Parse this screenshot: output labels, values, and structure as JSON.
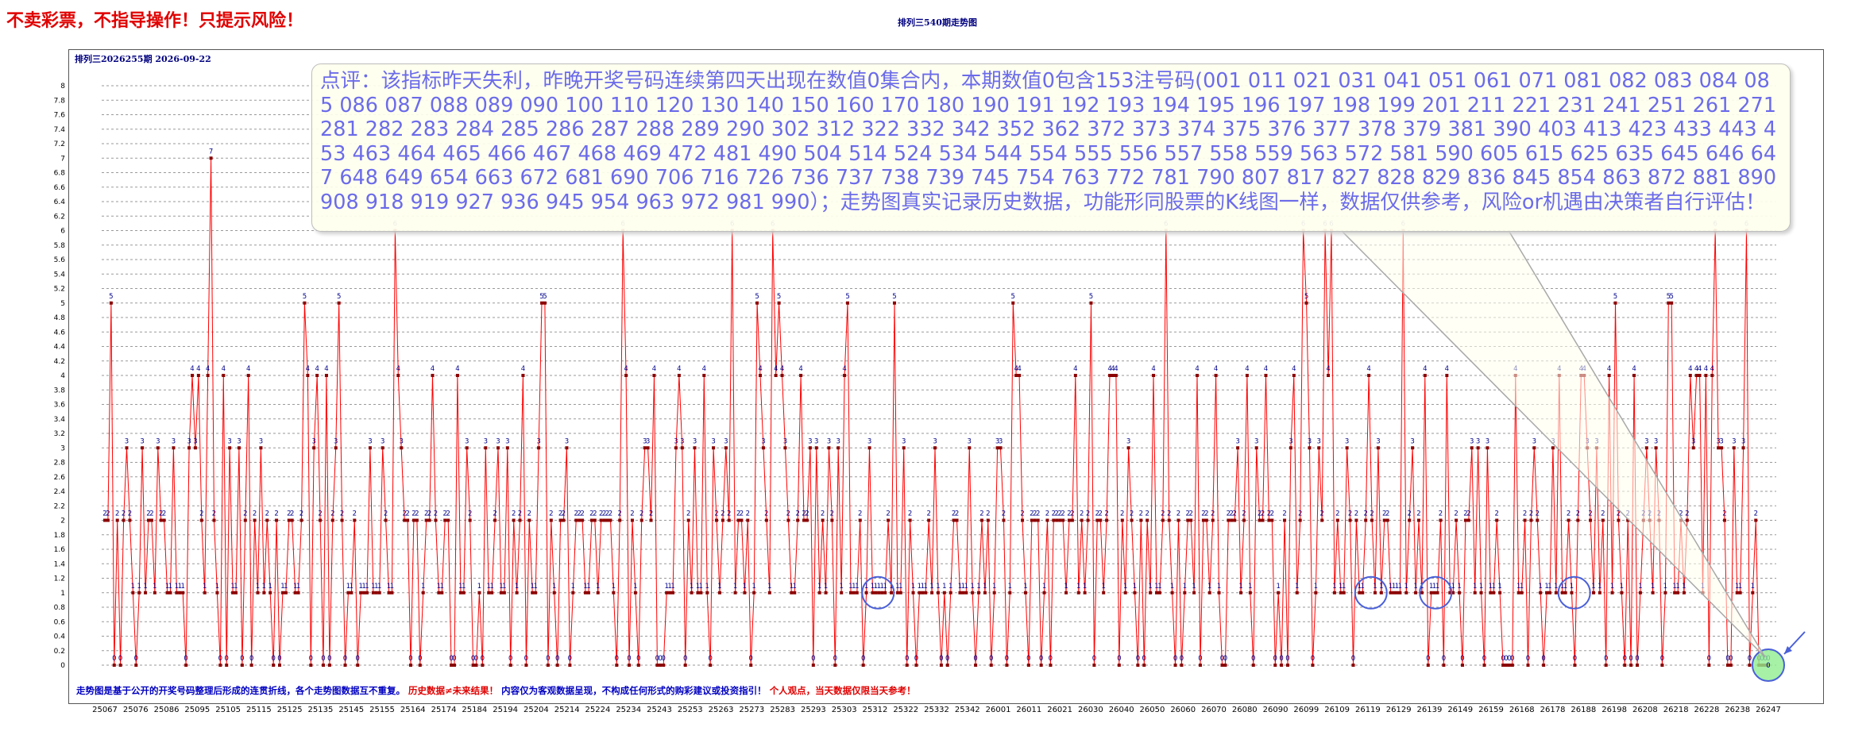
{
  "disclaimer": "不卖彩票，不指导操作！只提示风险！",
  "chart_title": "排列三540期走势图",
  "issue_info": "排列三2026255期  2026-09-22",
  "comment": "点评：该指标昨天失利，昨晚开奖号码连续第四天出现在数值0集合内，本期数值0包含153注号码(001 011 021 031 041 051 061 071 081 082 083 084 085 086 087 088 089 090 100 110 120 130 140 150 160 170 180 190 191 192 193 194 195 196 197 198 199 201 211 221 231 241 251 261 271 281 282 283 284 285 286 287 288 289 290 302 312 322 332 342 352 362 372 373 374 375 376 377 378 379 381 390 403 413 423 433 443 453 463 464 465 466 467 468 469 472 481 490 504 514 524 534 544 554 555 556 557 558 559 563 572 581 590 605 615 625 635 645 646 647 648 649 654 663 672 681 690 706 716 726 736 737 738 739 745 754 763 772 781 790 807 817 827 828 829 836 845 854 863 872 881 890 908 918 919 927 936 945 954 963 972 981 990）；走势图真实记录历史数据，功能形同股票的K线图一样，数据仅供参考，风险or机遇由决策者自行评估！",
  "footer": {
    "part1": "走势图是基于公开的开奖号码整理后形成的连贯折线，各个走势图数据互不重复。",
    "part2": "历史数据≠未来结果！",
    "part3": "内容仅为客观数据呈现，不构成任何形式的购彩建议或投资指引！",
    "part4": "个人观点，当天数据仅限当天参考！"
  },
  "colors": {
    "line": "#ff0000",
    "marker": "#8b0000",
    "label": "#00008b",
    "highlight_circle": "#4a60d8",
    "last_point_circle": "#90ee90"
  },
  "chart_data": {
    "type": "line",
    "title": "排列三540期走势图",
    "ylim": [
      0,
      8
    ],
    "yticks": [
      0,
      0.2,
      0.4,
      0.6,
      0.8,
      1,
      1.2,
      1.4,
      1.6,
      1.8,
      2,
      2.2,
      2.4,
      2.6,
      2.8,
      3,
      3.2,
      3.4,
      3.6,
      3.8,
      4,
      4.2,
      4.4,
      4.6,
      4.8,
      5,
      5.2,
      5.4,
      5.6,
      5.8,
      6,
      6.2,
      6.4,
      6.6,
      6.8,
      7,
      7.2,
      7.4,
      7.6,
      7.8,
      8
    ],
    "grid": true,
    "xtick_labels": [
      "25067",
      "25076",
      "25086",
      "25095",
      "25105",
      "25115",
      "25125",
      "25135",
      "25145",
      "25155",
      "25164",
      "25174",
      "25184",
      "25194",
      "25204",
      "25214",
      "25224",
      "25234",
      "25243",
      "25253",
      "25263",
      "25273",
      "25283",
      "25293",
      "25303",
      "25312",
      "25322",
      "25332",
      "25342",
      "26001",
      "26011",
      "26021",
      "26030",
      "26040",
      "26050",
      "26060",
      "26070",
      "26080",
      "26090",
      "26099",
      "26109",
      "26119",
      "26129",
      "26139",
      "26149",
      "26159",
      "26168",
      "26178",
      "26188",
      "26198",
      "26208",
      "26218",
      "26228",
      "26238",
      "26247"
    ],
    "x_start": "25067",
    "x_end": "26255",
    "values": [
      2,
      2,
      5,
      0,
      2,
      0,
      2,
      3,
      2,
      1,
      0,
      1,
      3,
      1,
      2,
      2,
      1,
      3,
      2,
      2,
      1,
      1,
      3,
      1,
      1,
      1,
      0,
      3,
      4,
      3,
      4,
      2,
      1,
      4,
      7,
      2,
      1,
      0,
      4,
      0,
      3,
      1,
      1,
      3,
      0,
      2,
      4,
      0,
      2,
      1,
      3,
      1,
      2,
      1,
      0,
      2,
      0,
      1,
      1,
      2,
      2,
      1,
      1,
      2,
      5,
      4,
      0,
      3,
      4,
      2,
      0,
      4,
      0,
      2,
      3,
      5,
      2,
      0,
      1,
      1,
      2,
      0,
      1,
      1,
      1,
      3,
      1,
      1,
      1,
      3,
      2,
      1,
      1,
      6,
      4,
      3,
      2,
      2,
      0,
      2,
      2,
      0,
      1,
      2,
      2,
      4,
      2,
      1,
      1,
      2,
      2,
      0,
      0,
      4,
      1,
      1,
      3,
      2,
      0,
      0,
      1,
      0,
      3,
      1,
      1,
      2,
      3,
      1,
      1,
      3,
      0,
      2,
      1,
      2,
      4,
      0,
      2,
      1,
      1,
      3,
      5,
      5,
      0,
      2,
      1,
      0,
      2,
      2,
      3,
      0,
      1,
      2,
      2,
      2,
      1,
      1,
      2,
      2,
      1,
      2,
      2,
      2,
      2,
      1,
      0,
      2,
      6,
      4,
      0,
      2,
      1,
      0,
      2,
      3,
      3,
      2,
      4,
      0,
      0,
      0,
      1,
      1,
      1,
      3,
      4,
      3,
      0,
      2,
      1,
      3,
      1,
      1,
      4,
      1,
      0,
      3,
      2,
      1,
      2,
      3,
      2,
      6,
      1,
      2,
      2,
      1,
      2,
      0,
      1,
      5,
      4,
      3,
      2,
      1,
      6,
      4,
      5,
      4,
      3,
      2,
      1,
      1,
      2,
      4,
      2,
      2,
      3,
      0,
      3,
      1,
      2,
      1,
      3,
      2,
      0,
      3,
      1,
      4,
      5,
      1,
      1,
      1,
      2,
      0,
      1,
      3,
      1,
      1,
      1,
      1,
      1,
      2,
      1,
      5,
      1,
      1,
      3,
      0,
      2,
      1,
      0,
      1,
      1,
      1,
      2,
      1,
      3,
      1,
      0,
      1,
      0,
      1,
      2,
      2,
      1,
      1,
      1,
      3,
      1,
      0,
      1,
      2,
      1,
      2,
      0,
      1,
      3,
      3,
      2,
      0,
      1,
      5,
      4,
      4,
      2,
      1,
      0,
      2,
      2,
      2,
      0,
      1,
      2,
      0,
      2,
      2,
      2,
      2,
      1,
      2,
      2,
      4,
      1,
      2,
      1,
      2,
      5,
      0,
      2,
      2,
      1,
      2,
      4,
      4,
      4,
      0,
      2,
      1,
      3,
      2,
      1,
      0,
      2,
      0,
      2,
      1,
      4,
      1,
      1,
      2,
      6,
      2,
      1,
      0,
      2,
      0,
      1,
      2,
      2,
      1,
      4,
      0,
      2,
      2,
      1,
      2,
      4,
      1,
      0,
      0,
      2,
      2,
      2,
      3,
      1,
      2,
      4,
      1,
      0,
      3,
      2,
      2,
      4,
      2,
      2,
      0,
      1,
      0,
      2,
      0,
      3,
      4,
      1,
      2,
      6,
      5,
      3,
      0,
      1,
      3,
      2,
      6,
      4,
      6,
      1,
      2,
      1,
      1,
      3,
      2,
      0,
      2,
      1,
      1,
      2,
      4,
      2,
      1,
      3,
      1,
      2,
      2,
      1,
      1,
      1,
      1,
      6,
      1,
      2,
      3,
      1,
      2,
      1,
      4,
      0,
      1,
      1,
      1,
      2,
      0,
      4,
      1,
      1,
      2,
      1,
      0,
      2,
      2,
      3,
      1,
      3,
      1,
      0,
      3,
      1,
      1,
      2,
      1,
      0,
      0,
      0,
      0,
      4,
      1,
      1,
      2,
      0,
      2,
      3,
      2,
      1,
      0,
      1,
      1,
      3,
      1,
      4,
      1,
      1,
      2,
      1,
      0,
      2,
      4,
      4,
      3,
      2,
      1,
      3,
      1,
      2,
      0,
      4,
      1,
      5,
      2,
      1,
      0,
      2,
      0,
      4,
      0,
      1,
      2,
      3,
      2,
      1,
      3,
      2,
      0,
      1,
      5,
      5,
      1,
      1,
      2,
      1,
      2,
      4,
      3,
      4,
      4,
      1,
      4,
      0,
      4,
      6,
      3,
      3,
      2,
      0,
      0,
      3,
      1,
      1,
      3,
      6,
      0,
      1,
      2,
      0,
      0,
      0,
      0
    ],
    "highlight_points": [
      {
        "x": "25318",
        "y": 1
      },
      {
        "x": "26126",
        "y": 1
      },
      {
        "x": "26147",
        "y": 1
      },
      {
        "x": "26192",
        "y": 1
      },
      {
        "x": "26255",
        "y": 0
      }
    ]
  }
}
